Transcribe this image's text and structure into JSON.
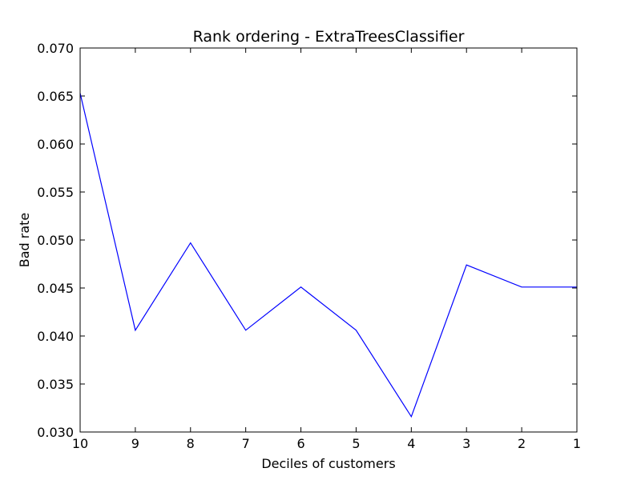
{
  "chart_data": {
    "type": "line",
    "title": "Rank ordering - ExtraTreesClassifier",
    "xlabel": "Deciles of customers",
    "ylabel": "Bad rate",
    "x": [
      10,
      9,
      8,
      7,
      6,
      5,
      4,
      3,
      2,
      1
    ],
    "x_tick_labels": [
      "10",
      "9",
      "8",
      "7",
      "6",
      "5",
      "4",
      "3",
      "2",
      "1"
    ],
    "xlim": [
      10,
      1
    ],
    "ylim": [
      0.03,
      0.07
    ],
    "y_ticks": [
      0.03,
      0.035,
      0.04,
      0.045,
      0.05,
      0.055,
      0.06,
      0.065,
      0.07
    ],
    "y_tick_labels": [
      "0.030",
      "0.035",
      "0.040",
      "0.045",
      "0.050",
      "0.055",
      "0.060",
      "0.065",
      "0.070"
    ],
    "series": [
      {
        "values": [
          0.0653,
          0.0406,
          0.0497,
          0.0406,
          0.0451,
          0.0406,
          0.0316,
          0.0474,
          0.0451,
          0.0451
        ],
        "color": "#0000ff"
      }
    ],
    "grid": false,
    "legend": "none"
  }
}
